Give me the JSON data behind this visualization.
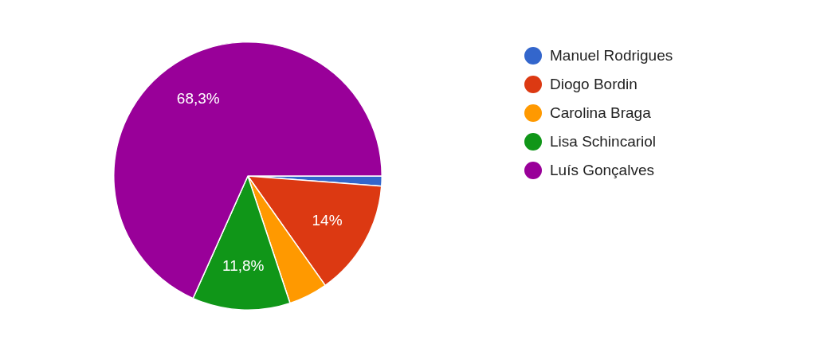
{
  "chart_data": {
    "type": "pie",
    "categories": [
      "Manuel Rodrigues",
      "Diogo Bordin",
      "Carolina Braga",
      "Lisa Schincariol",
      "Luís Gonçalves"
    ],
    "values": [
      1.2,
      14,
      4.7,
      11.8,
      68.3
    ],
    "value_labels": [
      null,
      "14%",
      null,
      "11,8%",
      "68,3%"
    ],
    "colors": [
      "#3366cc",
      "#dc3912",
      "#ff9900",
      "#109618",
      "#990099"
    ],
    "legend": "right"
  }
}
